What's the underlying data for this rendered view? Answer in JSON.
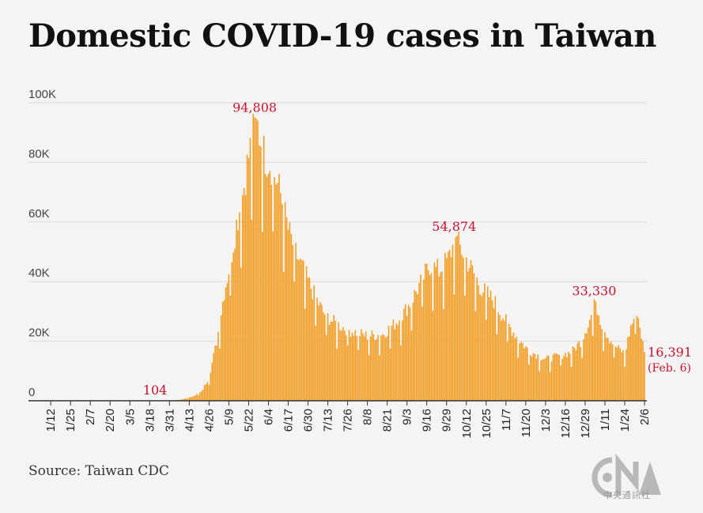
{
  "title": "Domestic COVID-19 cases in Taiwan",
  "source": "Source: Taiwan CDC",
  "logo": {
    "text": "CNA",
    "subtext": "中央通訊社"
  },
  "colors": {
    "bar": "#f39c1f",
    "annotation": "#c8102e",
    "grid": "#d9d9d9"
  },
  "chart_data": {
    "type": "bar",
    "x_start": "2022-01-01",
    "x_end": "2023-02-06",
    "ylim": [
      0,
      100000
    ],
    "yticks": [
      {
        "value": 0,
        "label": "0"
      },
      {
        "value": 20000,
        "label": "20K"
      },
      {
        "value": 40000,
        "label": "40K"
      },
      {
        "value": 60000,
        "label": "60K"
      },
      {
        "value": 80000,
        "label": "80K"
      },
      {
        "value": 100000,
        "label": "100K"
      }
    ],
    "xticks": [
      "1/12",
      "1/25",
      "2/7",
      "2/20",
      "3/5",
      "3/18",
      "3/31",
      "4/13",
      "4/26",
      "5/9",
      "5/22",
      "6/4",
      "6/17",
      "6/30",
      "7/13",
      "7/26",
      "8/8",
      "8/21",
      "9/3",
      "9/16",
      "9/29",
      "10/12",
      "10/25",
      "11/7",
      "11/20",
      "12/3",
      "12/16",
      "12/29",
      "1/11",
      "1/24",
      "2/6"
    ],
    "approx_series": [
      [
        "2022-01-01",
        20
      ],
      [
        "2022-03-20",
        60
      ],
      [
        "2022-03-31",
        104
      ],
      [
        "2022-04-07",
        300
      ],
      [
        "2022-04-14",
        1200
      ],
      [
        "2022-04-21",
        3000
      ],
      [
        "2022-04-26",
        8000
      ],
      [
        "2022-05-01",
        20000
      ],
      [
        "2022-05-06",
        37000
      ],
      [
        "2022-05-10",
        47000
      ],
      [
        "2022-05-14",
        60000
      ],
      [
        "2022-05-18",
        70000
      ],
      [
        "2022-05-22",
        83000
      ],
      [
        "2022-05-27",
        94808
      ],
      [
        "2022-06-01",
        84000
      ],
      [
        "2022-06-06",
        80000
      ],
      [
        "2022-06-12",
        70000
      ],
      [
        "2022-06-17",
        58000
      ],
      [
        "2022-06-22",
        50000
      ],
      [
        "2022-06-28",
        43000
      ],
      [
        "2022-07-04",
        36000
      ],
      [
        "2022-07-10",
        30000
      ],
      [
        "2022-07-16",
        27000
      ],
      [
        "2022-07-26",
        24000
      ],
      [
        "2022-08-08",
        22000
      ],
      [
        "2022-08-18",
        22500
      ],
      [
        "2022-08-28",
        27000
      ],
      [
        "2022-09-05",
        33000
      ],
      [
        "2022-09-12",
        40000
      ],
      [
        "2022-09-18",
        46000
      ],
      [
        "2022-09-24",
        44000
      ],
      [
        "2022-09-30",
        48000
      ],
      [
        "2022-10-05",
        54874
      ],
      [
        "2022-10-10",
        50000
      ],
      [
        "2022-10-16",
        44000
      ],
      [
        "2022-10-22",
        38000
      ],
      [
        "2022-10-30",
        34000
      ],
      [
        "2022-11-07",
        27000
      ],
      [
        "2022-11-15",
        21000
      ],
      [
        "2022-11-22",
        17000
      ],
      [
        "2022-12-03",
        14000
      ],
      [
        "2022-12-10",
        15000
      ],
      [
        "2022-12-20",
        16500
      ],
      [
        "2022-12-26",
        20000
      ],
      [
        "2022-12-31",
        26000
      ],
      [
        "2023-01-05",
        33330
      ],
      [
        "2023-01-09",
        26000
      ],
      [
        "2023-01-14",
        21000
      ],
      [
        "2023-01-19",
        18000
      ],
      [
        "2023-01-24",
        16000
      ],
      [
        "2023-01-28",
        25000
      ],
      [
        "2023-02-01",
        31000
      ],
      [
        "2023-02-06",
        16391
      ]
    ],
    "annotations": [
      {
        "date": "2022-03-31",
        "value": 104,
        "label": "104"
      },
      {
        "date": "2022-05-27",
        "value": 94808,
        "label": "94,808"
      },
      {
        "date": "2022-10-05",
        "value": 54874,
        "label": "54,874"
      },
      {
        "date": "2023-01-05",
        "value": 33330,
        "label": "33,330"
      },
      {
        "date": "2023-02-06",
        "value": 16391,
        "label": "16,391",
        "sublabel": "(Feb. 6)"
      }
    ]
  }
}
